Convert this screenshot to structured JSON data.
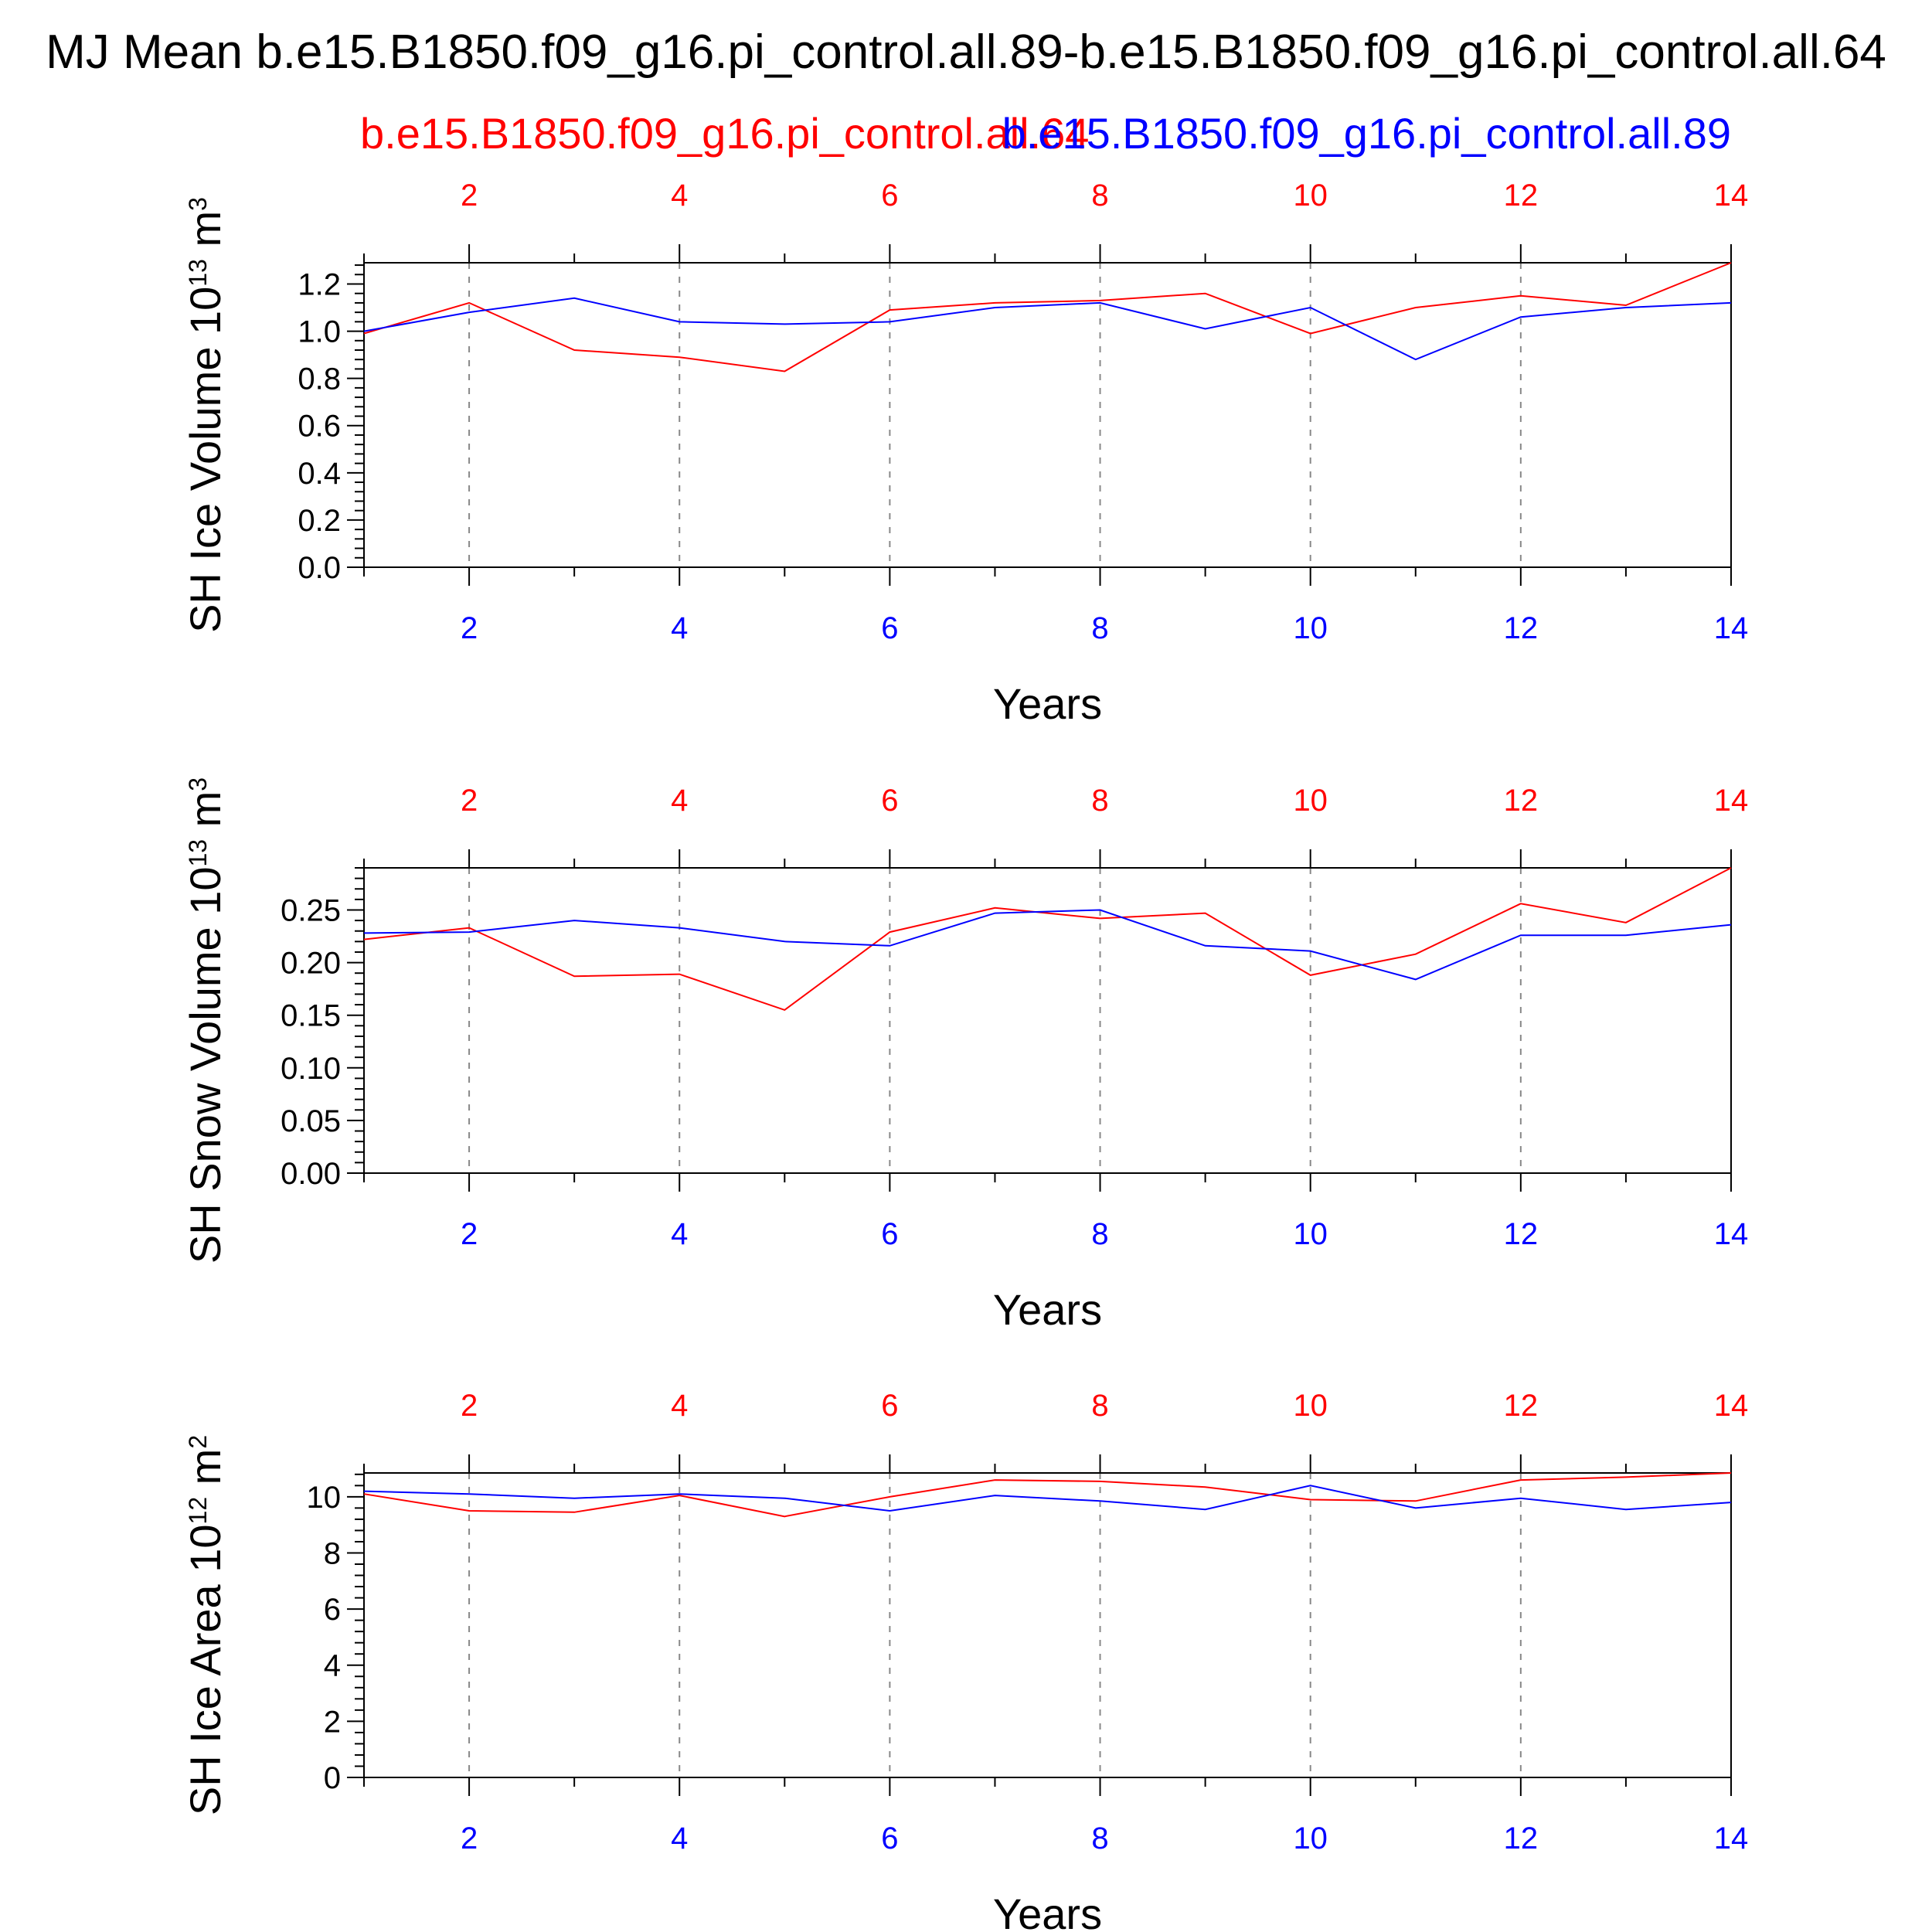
{
  "page": {
    "title": "MJ Mean b.e15.B1850.f09_g16.pi_control.all.89-b.e15.B1850.f09_g16.pi_control.all.64",
    "case_left": "b.e15.B1850.f09_g16.pi_control.all.64",
    "case_right": "b.e15.B1850.f09_g16.pi_control.all.89"
  },
  "colors": {
    "case_64": "#ff0000",
    "case_89": "#0000ff",
    "axis": "#000000",
    "grid": "#888888"
  },
  "chart_data": [
    {
      "type": "line",
      "ylabel": "SH Ice Volume 10",
      "ylabel_exp": "13",
      "ylabel_unit": " m",
      "ylabel_unit_exp": "3",
      "xlabel": "Years",
      "xlim": [
        1,
        14
      ],
      "ylim": [
        0,
        1.29
      ],
      "yticks": [
        "0.0",
        "0.2",
        "0.4",
        "0.6",
        "0.8",
        "1.0",
        "1.2"
      ],
      "xticks": [
        "2",
        "4",
        "6",
        "8",
        "10",
        "12",
        "14"
      ],
      "x": [
        1,
        2,
        3,
        4,
        5,
        6,
        7,
        8,
        9,
        10,
        11,
        12,
        13,
        14
      ],
      "series": [
        {
          "name": "b.e15.B1850.f09_g16.pi_control.all.64",
          "color": "#ff0000",
          "values": [
            0.99,
            1.12,
            0.92,
            0.89,
            0.83,
            1.09,
            1.12,
            1.13,
            1.16,
            0.99,
            1.1,
            1.15,
            1.11,
            1.29
          ]
        },
        {
          "name": "b.e15.B1850.f09_g16.pi_control.all.89",
          "color": "#0000ff",
          "values": [
            1.0,
            1.08,
            1.14,
            1.04,
            1.03,
            1.04,
            1.1,
            1.12,
            1.01,
            1.1,
            0.88,
            1.06,
            1.1,
            1.12
          ]
        }
      ]
    },
    {
      "type": "line",
      "ylabel": "SH Snow Volume 10",
      "ylabel_exp": "13",
      "ylabel_unit": " m",
      "ylabel_unit_exp": "3",
      "xlabel": "Years",
      "xlim": [
        1,
        14
      ],
      "ylim": [
        0,
        0.29
      ],
      "yticks": [
        "0.00",
        "0.05",
        "0.10",
        "0.15",
        "0.20",
        "0.25"
      ],
      "xticks": [
        "2",
        "4",
        "6",
        "8",
        "10",
        "12",
        "14"
      ],
      "x": [
        1,
        2,
        3,
        4,
        5,
        6,
        7,
        8,
        9,
        10,
        11,
        12,
        13,
        14
      ],
      "series": [
        {
          "name": "b.e15.B1850.f09_g16.pi_control.all.64",
          "color": "#ff0000",
          "values": [
            0.222,
            0.233,
            0.187,
            0.189,
            0.155,
            0.229,
            0.252,
            0.242,
            0.247,
            0.188,
            0.208,
            0.256,
            0.238,
            0.29
          ]
        },
        {
          "name": "b.e15.B1850.f09_g16.pi_control.all.89",
          "color": "#0000ff",
          "values": [
            0.228,
            0.229,
            0.24,
            0.233,
            0.22,
            0.216,
            0.247,
            0.25,
            0.216,
            0.211,
            0.184,
            0.226,
            0.226,
            0.236
          ]
        }
      ]
    },
    {
      "type": "line",
      "ylabel": "SH Ice Area 10",
      "ylabel_exp": "12",
      "ylabel_unit": " m",
      "ylabel_unit_exp": "2",
      "xlabel": "Years",
      "xlim": [
        1,
        14
      ],
      "ylim": [
        0,
        10.85
      ],
      "yticks": [
        "0",
        "2",
        "4",
        "6",
        "8",
        "10"
      ],
      "xticks": [
        "2",
        "4",
        "6",
        "8",
        "10",
        "12",
        "14"
      ],
      "x": [
        1,
        2,
        3,
        4,
        5,
        6,
        7,
        8,
        9,
        10,
        11,
        12,
        13,
        14
      ],
      "series": [
        {
          "name": "b.e15.B1850.f09_g16.pi_control.all.64",
          "color": "#ff0000",
          "values": [
            10.1,
            9.5,
            9.45,
            10.05,
            9.3,
            10.0,
            10.6,
            10.55,
            10.35,
            9.9,
            9.85,
            10.6,
            10.7,
            10.85
          ]
        },
        {
          "name": "b.e15.B1850.f09_g16.pi_control.all.89",
          "color": "#0000ff",
          "values": [
            10.2,
            10.1,
            9.95,
            10.1,
            9.95,
            9.5,
            10.05,
            9.85,
            9.55,
            10.4,
            9.6,
            9.95,
            9.55,
            9.8
          ]
        }
      ]
    }
  ]
}
